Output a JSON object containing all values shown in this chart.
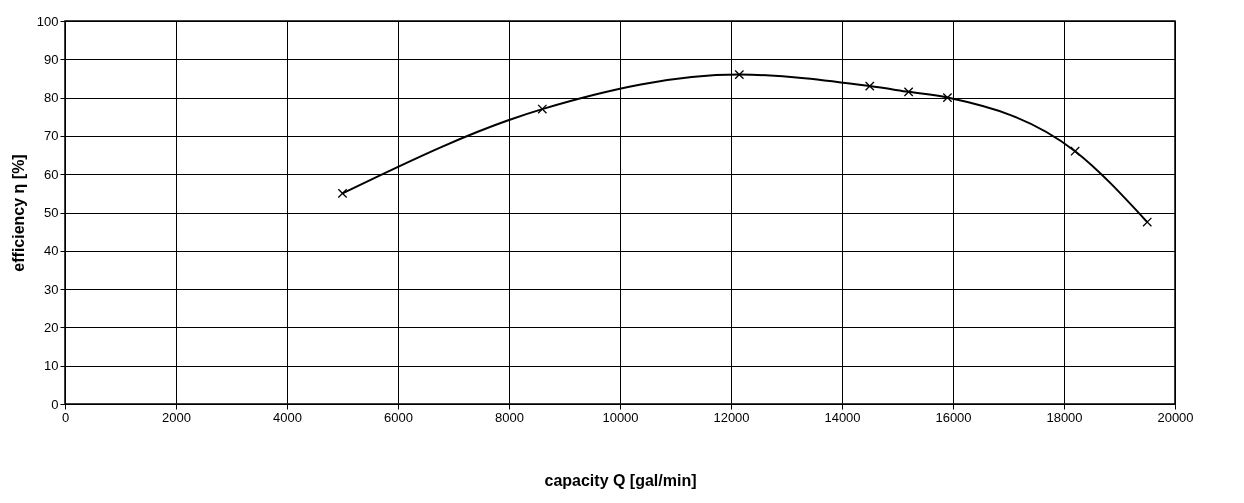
{
  "chart_data": {
    "type": "line",
    "xlabel": "capacity Q [gal/min]",
    "ylabel": "efficiency η  [%]",
    "x": [
      5000,
      8600,
      12150,
      14500,
      15200,
      15900,
      18200,
      19500
    ],
    "series": [
      {
        "color": "#000000",
        "values": [
          55,
          77,
          86,
          83,
          81.5,
          80,
          66,
          47.5
        ]
      }
    ],
    "xlim": [
      0,
      20000
    ],
    "xticks": [
      0,
      2000,
      4000,
      6000,
      8000,
      10000,
      12000,
      14000,
      16000,
      18000,
      20000
    ],
    "ylim": [
      0,
      100
    ],
    "yticks": [
      0,
      10,
      20,
      30,
      40,
      50,
      60,
      70,
      80,
      90,
      100
    ],
    "grid": true,
    "marker": "cross",
    "line_style": "solid"
  }
}
